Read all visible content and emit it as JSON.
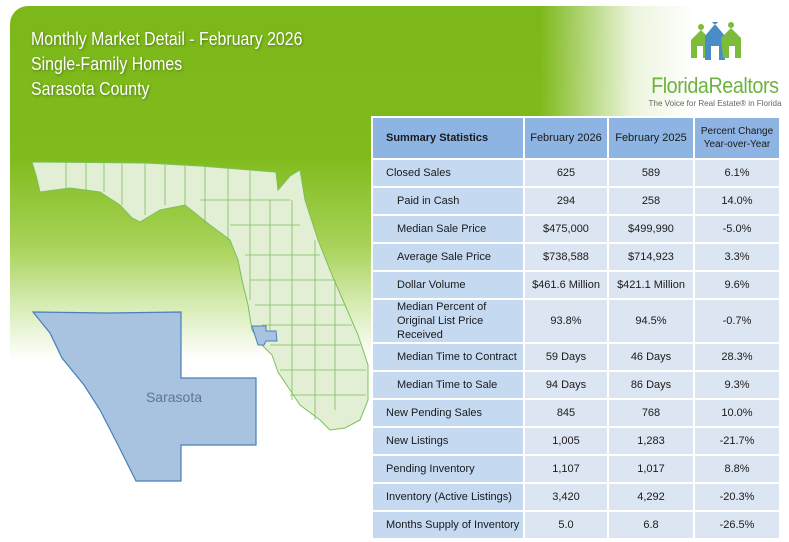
{
  "header": {
    "line1": "Monthly Market Detail - February 2026",
    "line2": "Single-Family Homes",
    "line3": "Sarasota County"
  },
  "logo": {
    "name": "FloridaRealtors",
    "tagline": "The Voice for Real Estate® in Florida",
    "icon": "houses-people-icon"
  },
  "map": {
    "label": "Sarasota",
    "highlight_color": "#a7c3e0",
    "state_fill": "#e3efd5",
    "border_color": "#7cc05a"
  },
  "table": {
    "headers": [
      "Summary Statistics",
      "February 2026",
      "February 2025",
      "Percent Change Year-over-Year"
    ],
    "rows": [
      {
        "label": "Closed Sales",
        "v": [
          "625",
          "589",
          "6.1%"
        ],
        "indent": false
      },
      {
        "label": "Paid in Cash",
        "v": [
          "294",
          "258",
          "14.0%"
        ],
        "indent": true
      },
      {
        "label": "Median Sale Price",
        "v": [
          "$475,000",
          "$499,990",
          "-5.0%"
        ],
        "indent": true
      },
      {
        "label": "Average Sale Price",
        "v": [
          "$738,588",
          "$714,923",
          "3.3%"
        ],
        "indent": true
      },
      {
        "label": "Dollar Volume",
        "v": [
          "$461.6 Million",
          "$421.1 Million",
          "9.6%"
        ],
        "indent": true
      },
      {
        "label": "Median Percent of Original List Price Received",
        "v": [
          "93.8%",
          "94.5%",
          "-0.7%"
        ],
        "indent": true
      },
      {
        "label": "Median Time to Contract",
        "v": [
          "59 Days",
          "46 Days",
          "28.3%"
        ],
        "indent": true
      },
      {
        "label": "Median Time to Sale",
        "v": [
          "94 Days",
          "86 Days",
          "9.3%"
        ],
        "indent": true
      },
      {
        "label": "New Pending Sales",
        "v": [
          "845",
          "768",
          "10.0%"
        ],
        "indent": false
      },
      {
        "label": "New Listings",
        "v": [
          "1,005",
          "1,283",
          "-21.7%"
        ],
        "indent": false
      },
      {
        "label": "Pending Inventory",
        "v": [
          "1,107",
          "1,017",
          "8.8%"
        ],
        "indent": false
      },
      {
        "label": "Inventory (Active Listings)",
        "v": [
          "3,420",
          "4,292",
          "-20.3%"
        ],
        "indent": false
      },
      {
        "label": "Months Supply of Inventory",
        "v": [
          "5.0",
          "6.8",
          "-26.5%"
        ],
        "indent": false
      }
    ]
  }
}
